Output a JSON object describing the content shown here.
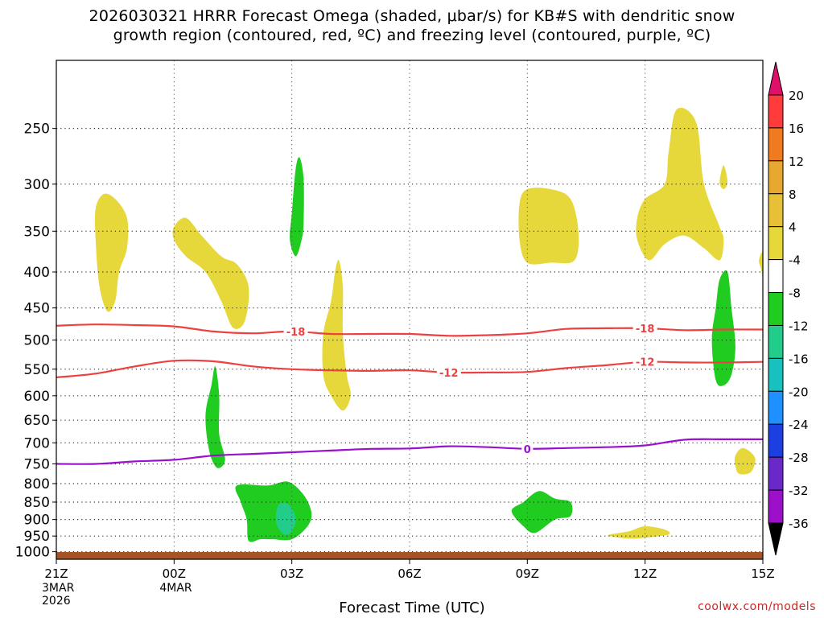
{
  "title_line1": "2026030321 HRRR Forecast Omega (shaded, μbar/s) for KB#S with dendritic snow",
  "title_line2": "growth region (contoured, red, ºC) and freezing level (contoured, purple, ºC)",
  "credit": "coolwx.com/models",
  "chart_data": {
    "type": "contour",
    "xlabel": "Forecast Time (UTC)",
    "ylabel": "",
    "x_ticks": [
      "21Z",
      "00Z",
      "03Z",
      "06Z",
      "09Z",
      "12Z",
      "15Z"
    ],
    "x_tick_hours": [
      0,
      3,
      6,
      9,
      12,
      15,
      18
    ],
    "x_dates": [
      {
        "hour": 0,
        "lines": [
          "3MAR",
          "2026"
        ]
      },
      {
        "hour": 3,
        "lines": [
          "4MAR"
        ]
      }
    ],
    "xlim": [
      0,
      18
    ],
    "y_ticks": [
      250,
      300,
      350,
      400,
      450,
      500,
      550,
      600,
      650,
      700,
      750,
      800,
      850,
      900,
      950,
      1000
    ],
    "ylim": [
      1025,
      200
    ],
    "y_scale": "log-pressure",
    "grid": true,
    "colorbar": {
      "levels": [
        20,
        16,
        12,
        8,
        4,
        -4,
        -8,
        -12,
        -16,
        -20,
        -24,
        -28,
        -32,
        -36
      ],
      "colors": [
        "#ff3b3b",
        "#f07a20",
        "#e8a830",
        "#e8c038",
        "#e6d83a",
        "#ffffff",
        "#1fcc1f",
        "#22cc8a",
        "#18c0c0",
        "#1e90ff",
        "#1d3ee0",
        "#6a28c8",
        "#9b10c8",
        "#a8a8a8"
      ],
      "top_arrow_color": "#e0106a",
      "bottom_arrow_color": "#000000"
    },
    "contours": [
      {
        "label": "-18",
        "color": "#ee4040",
        "label_at_hours": [
          6.1,
          15.0
        ],
        "points": [
          [
            0,
            477
          ],
          [
            1,
            475
          ],
          [
            2,
            476
          ],
          [
            3,
            478
          ],
          [
            4,
            486
          ],
          [
            5,
            489
          ],
          [
            6,
            486
          ],
          [
            7,
            490
          ],
          [
            8,
            490
          ],
          [
            9,
            490
          ],
          [
            10,
            493
          ],
          [
            11,
            492
          ],
          [
            12,
            489
          ],
          [
            13,
            482
          ],
          [
            14,
            481
          ],
          [
            15,
            481
          ],
          [
            16,
            484
          ],
          [
            17,
            483
          ],
          [
            18,
            483
          ]
        ]
      },
      {
        "label": "-12",
        "color": "#ee4040",
        "label_at_hours": [
          10.0,
          15.0
        ],
        "points": [
          [
            0,
            565
          ],
          [
            1,
            558
          ],
          [
            2,
            545
          ],
          [
            3,
            535
          ],
          [
            4,
            536
          ],
          [
            5,
            545
          ],
          [
            6,
            550
          ],
          [
            7,
            552
          ],
          [
            8,
            553
          ],
          [
            9,
            552
          ],
          [
            10,
            556
          ],
          [
            11,
            556
          ],
          [
            12,
            555
          ],
          [
            13,
            548
          ],
          [
            14,
            543
          ],
          [
            15,
            537
          ],
          [
            16,
            538
          ],
          [
            17,
            538
          ],
          [
            18,
            537
          ]
        ]
      },
      {
        "label": "0",
        "color": "#9a10cc",
        "label_at_hours": [
          12.0
        ],
        "points": [
          [
            0,
            750
          ],
          [
            1,
            750
          ],
          [
            2,
            744
          ],
          [
            3,
            740
          ],
          [
            4,
            730
          ],
          [
            5,
            726
          ],
          [
            6,
            722
          ],
          [
            7,
            718
          ],
          [
            8,
            714
          ],
          [
            9,
            713
          ],
          [
            10,
            708
          ],
          [
            11,
            710
          ],
          [
            12,
            714
          ],
          [
            13,
            712
          ],
          [
            14,
            710
          ],
          [
            15,
            706
          ],
          [
            16,
            693
          ],
          [
            17,
            692
          ],
          [
            18,
            692
          ]
        ]
      }
    ],
    "regions": [
      {
        "level": 4,
        "color": "#e6d83a",
        "points": [
          [
            1.0,
            325
          ],
          [
            1.2,
            310
          ],
          [
            1.5,
            315
          ],
          [
            1.8,
            335
          ],
          [
            1.8,
            370
          ],
          [
            1.6,
            400
          ],
          [
            1.5,
            440
          ],
          [
            1.3,
            455
          ],
          [
            1.1,
            420
          ],
          [
            1.0,
            360
          ]
        ]
      },
      {
        "level": 4,
        "color": "#e6d83a",
        "points": [
          [
            3.0,
            345
          ],
          [
            3.3,
            335
          ],
          [
            3.7,
            355
          ],
          [
            4.2,
            380
          ],
          [
            4.6,
            390
          ],
          [
            4.9,
            420
          ],
          [
            4.8,
            470
          ],
          [
            4.5,
            480
          ],
          [
            4.2,
            440
          ],
          [
            3.8,
            400
          ],
          [
            3.3,
            380
          ],
          [
            3.0,
            360
          ]
        ]
      },
      {
        "level": 4,
        "color": "#e6d83a",
        "points": [
          [
            6.8,
            490
          ],
          [
            7.0,
            440
          ],
          [
            7.1,
            400
          ],
          [
            7.2,
            385
          ],
          [
            7.3,
            420
          ],
          [
            7.3,
            490
          ],
          [
            7.4,
            560
          ],
          [
            7.5,
            600
          ],
          [
            7.3,
            630
          ],
          [
            7.0,
            600
          ],
          [
            6.8,
            560
          ]
        ]
      },
      {
        "level": 4,
        "color": "#e6d83a",
        "points": [
          [
            11.8,
            320
          ],
          [
            12.0,
            305
          ],
          [
            12.6,
            305
          ],
          [
            13.1,
            315
          ],
          [
            13.3,
            350
          ],
          [
            13.2,
            385
          ],
          [
            12.6,
            388
          ],
          [
            12.0,
            388
          ],
          [
            11.8,
            360
          ]
        ]
      },
      {
        "level": 4,
        "color": "#e6d83a",
        "points": [
          [
            14.8,
            335
          ],
          [
            15.0,
            315
          ],
          [
            15.5,
            300
          ],
          [
            15.6,
            270
          ],
          [
            15.8,
            235
          ],
          [
            16.3,
            245
          ],
          [
            16.5,
            300
          ],
          [
            16.9,
            345
          ],
          [
            17.0,
            360
          ],
          [
            16.9,
            385
          ],
          [
            16.5,
            370
          ],
          [
            16.0,
            355
          ],
          [
            15.5,
            365
          ],
          [
            15.1,
            385
          ],
          [
            14.8,
            360
          ]
        ]
      },
      {
        "level": 4,
        "color": "#e6d83a",
        "points": [
          [
            16.9,
            298
          ],
          [
            17.0,
            282
          ],
          [
            17.1,
            298
          ],
          [
            17.0,
            305
          ]
        ]
      },
      {
        "level": 4,
        "color": "#e6d83a",
        "points": [
          [
            17.9,
            385
          ],
          [
            18.0,
            375
          ],
          [
            18.0,
            405
          ],
          [
            17.95,
            395
          ]
        ]
      },
      {
        "level": 4,
        "color": "#e6d83a",
        "points": [
          [
            17.3,
            730
          ],
          [
            17.5,
            712
          ],
          [
            17.8,
            735
          ],
          [
            17.7,
            770
          ],
          [
            17.4,
            775
          ],
          [
            17.3,
            755
          ]
        ]
      },
      {
        "level": 4,
        "color": "#e6d83a",
        "points": [
          [
            14.1,
            945
          ],
          [
            14.6,
            935
          ],
          [
            15.0,
            920
          ],
          [
            15.5,
            930
          ],
          [
            15.6,
            945
          ],
          [
            15.0,
            955
          ],
          [
            14.6,
            958
          ],
          [
            14.1,
            950
          ]
        ]
      },
      {
        "level": -4,
        "color": "#1fcc1f",
        "points": [
          [
            3.8,
            640
          ],
          [
            3.95,
            580
          ],
          [
            4.05,
            545
          ],
          [
            4.15,
            600
          ],
          [
            4.15,
            680
          ],
          [
            4.3,
            740
          ],
          [
            4.1,
            760
          ],
          [
            3.9,
            720
          ]
        ]
      },
      {
        "level": -4,
        "color": "#1fcc1f",
        "points": [
          [
            6.0,
            330
          ],
          [
            6.1,
            285
          ],
          [
            6.2,
            275
          ],
          [
            6.3,
            295
          ],
          [
            6.3,
            340
          ],
          [
            6.25,
            360
          ],
          [
            6.1,
            380
          ],
          [
            5.95,
            360
          ]
        ]
      },
      {
        "level": -4,
        "color": "#1fcc1f",
        "points": [
          [
            16.7,
            500
          ],
          [
            16.8,
            450
          ],
          [
            16.9,
            410
          ],
          [
            17.1,
            400
          ],
          [
            17.2,
            450
          ],
          [
            17.3,
            510
          ],
          [
            17.2,
            560
          ],
          [
            17.0,
            580
          ],
          [
            16.8,
            570
          ]
        ]
      },
      {
        "level": -4,
        "color": "#1fcc1f",
        "points": [
          [
            4.6,
            805
          ],
          [
            5.4,
            805
          ],
          [
            5.9,
            795
          ],
          [
            6.3,
            830
          ],
          [
            6.5,
            880
          ],
          [
            6.4,
            920
          ],
          [
            6.0,
            960
          ],
          [
            5.5,
            960
          ],
          [
            5.2,
            960
          ],
          [
            4.9,
            965
          ],
          [
            4.85,
            900
          ],
          [
            4.7,
            850
          ]
        ]
      },
      {
        "level": -8,
        "color": "#22cc8a",
        "points": [
          [
            5.65,
            860
          ],
          [
            5.9,
            855
          ],
          [
            6.1,
            895
          ],
          [
            6.0,
            935
          ],
          [
            5.8,
            945
          ],
          [
            5.6,
            910
          ]
        ]
      },
      {
        "level": -4,
        "color": "#1fcc1f",
        "points": [
          [
            11.6,
            875
          ],
          [
            11.9,
            850
          ],
          [
            12.3,
            820
          ],
          [
            12.7,
            840
          ],
          [
            13.1,
            850
          ],
          [
            13.1,
            890
          ],
          [
            12.7,
            900
          ],
          [
            12.2,
            940
          ],
          [
            11.9,
            920
          ]
        ]
      }
    ]
  }
}
